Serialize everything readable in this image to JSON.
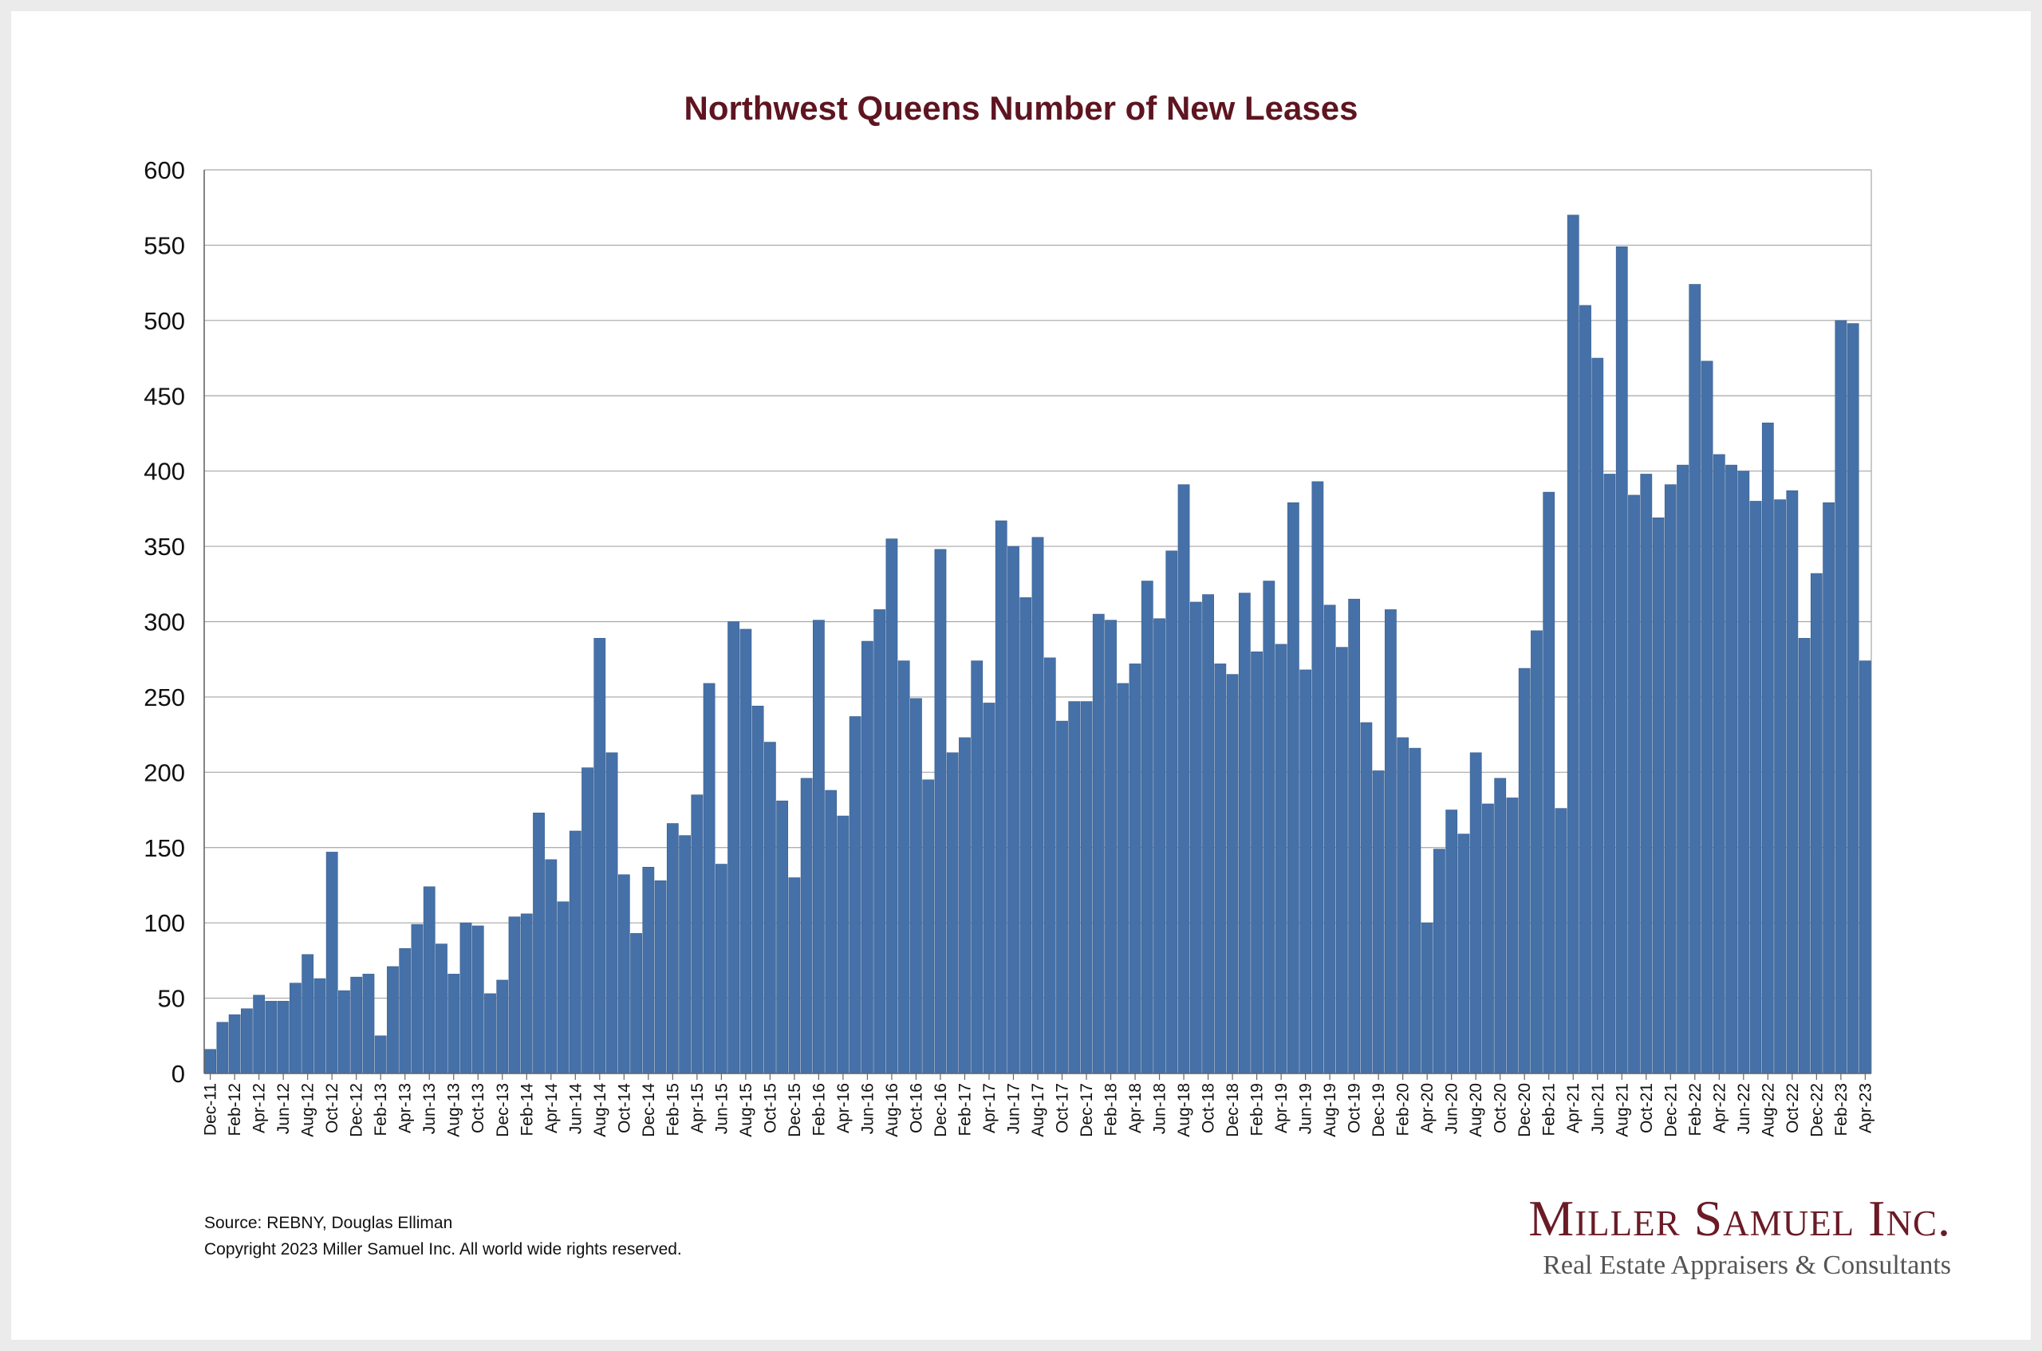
{
  "chart_data": {
    "type": "bar",
    "title": "Northwest Queens Number of New Leases",
    "xlabel": "",
    "ylabel": "",
    "ylim": [
      0,
      600
    ],
    "yticks": [
      0,
      50,
      100,
      150,
      200,
      250,
      300,
      350,
      400,
      450,
      500,
      550,
      600
    ],
    "grid": true,
    "color": "#4571a8",
    "categories": [
      "Dec-11",
      "Jan-12",
      "Feb-12",
      "Mar-12",
      "Apr-12",
      "May-12",
      "Jun-12",
      "Jul-12",
      "Aug-12",
      "Sep-12",
      "Oct-12",
      "Nov-12",
      "Dec-12",
      "Jan-13",
      "Feb-13",
      "Mar-13",
      "Apr-13",
      "May-13",
      "Jun-13",
      "Jul-13",
      "Aug-13",
      "Sep-13",
      "Oct-13",
      "Nov-13",
      "Dec-13",
      "Jan-14",
      "Feb-14",
      "Mar-14",
      "Apr-14",
      "May-14",
      "Jun-14",
      "Jul-14",
      "Aug-14",
      "Sep-14",
      "Oct-14",
      "Nov-14",
      "Dec-14",
      "Jan-15",
      "Feb-15",
      "Mar-15",
      "Apr-15",
      "May-15",
      "Jun-15",
      "Jul-15",
      "Aug-15",
      "Sep-15",
      "Oct-15",
      "Nov-15",
      "Dec-15",
      "Jan-16",
      "Feb-16",
      "Mar-16",
      "Apr-16",
      "May-16",
      "Jun-16",
      "Jul-16",
      "Aug-16",
      "Sep-16",
      "Oct-16",
      "Nov-16",
      "Dec-16",
      "Jan-17",
      "Feb-17",
      "Mar-17",
      "Apr-17",
      "May-17",
      "Jun-17",
      "Jul-17",
      "Aug-17",
      "Sep-17",
      "Oct-17",
      "Nov-17",
      "Dec-17",
      "Jan-18",
      "Feb-18",
      "Mar-18",
      "Apr-18",
      "May-18",
      "Jun-18",
      "Jul-18",
      "Aug-18",
      "Sep-18",
      "Oct-18",
      "Nov-18",
      "Dec-18",
      "Jan-19",
      "Feb-19",
      "Mar-19",
      "Apr-19",
      "May-19",
      "Jun-19",
      "Jul-19",
      "Aug-19",
      "Sep-19",
      "Oct-19",
      "Nov-19",
      "Dec-19",
      "Jan-20",
      "Feb-20",
      "Mar-20",
      "Apr-20",
      "May-20",
      "Jun-20",
      "Jul-20",
      "Aug-20",
      "Sep-20",
      "Oct-20",
      "Nov-20",
      "Dec-20",
      "Jan-21",
      "Feb-21",
      "Mar-21",
      "Apr-21",
      "May-21",
      "Jun-21",
      "Jul-21",
      "Aug-21",
      "Sep-21",
      "Oct-21",
      "Nov-21",
      "Dec-21",
      "Jan-22",
      "Feb-22",
      "Mar-22",
      "Apr-22",
      "May-22",
      "Jun-22",
      "Jul-22",
      "Aug-22",
      "Sep-22",
      "Oct-22",
      "Nov-22",
      "Dec-22",
      "Jan-23",
      "Feb-23",
      "Mar-23",
      "Apr-23"
    ],
    "values": [
      16,
      34,
      39,
      43,
      52,
      48,
      48,
      60,
      79,
      63,
      147,
      55,
      64,
      66,
      25,
      71,
      83,
      99,
      124,
      86,
      66,
      100,
      98,
      53,
      62,
      104,
      106,
      173,
      142,
      114,
      161,
      203,
      289,
      213,
      132,
      93,
      137,
      128,
      166,
      158,
      185,
      259,
      139,
      300,
      295,
      244,
      220,
      181,
      130,
      196,
      301,
      188,
      171,
      237,
      287,
      308,
      355,
      274,
      249,
      195,
      348,
      213,
      223,
      274,
      246,
      367,
      350,
      316,
      356,
      276,
      234,
      247,
      247,
      305,
      301,
      259,
      272,
      327,
      302,
      347,
      391,
      313,
      318,
      272,
      265,
      319,
      280,
      327,
      285,
      379,
      268,
      393,
      311,
      283,
      315,
      233,
      201,
      308,
      223,
      216,
      100,
      149,
      175,
      159,
      213,
      179,
      196,
      183,
      269,
      294,
      386,
      176,
      570,
      510,
      475,
      398,
      549,
      384,
      398,
      369,
      391,
      404,
      524,
      473,
      411,
      404,
      400,
      380,
      432,
      381,
      387,
      289,
      332,
      379,
      500,
      498,
      274
    ],
    "xtick_labels": [
      "Dec-11",
      "Feb-12",
      "Apr-12",
      "Jun-12",
      "Aug-12",
      "Oct-12",
      "Dec-12",
      "Feb-13",
      "Apr-13",
      "Jun-13",
      "Aug-13",
      "Oct-13",
      "Dec-13",
      "Feb-14",
      "Apr-14",
      "Jun-14",
      "Aug-14",
      "Oct-14",
      "Dec-14",
      "Feb-15",
      "Apr-15",
      "Jun-15",
      "Aug-15",
      "Oct-15",
      "Dec-15",
      "Feb-16",
      "Apr-16",
      "Jun-16",
      "Aug-16",
      "Oct-16",
      "Dec-16",
      "Feb-17",
      "Apr-17",
      "Jun-17",
      "Aug-17",
      "Oct-17",
      "Dec-17",
      "Feb-18",
      "Apr-18",
      "Jun-18",
      "Aug-18",
      "Oct-18",
      "Dec-18",
      "Feb-19",
      "Apr-19",
      "Jun-19",
      "Aug-19",
      "Oct-19",
      "Dec-19",
      "Feb-20",
      "Apr-20",
      "Jun-20",
      "Aug-20",
      "Oct-20",
      "Dec-20",
      "Feb-21",
      "Apr-21",
      "Jun-21",
      "Aug-21",
      "Oct-21",
      "Dec-21",
      "Feb-22",
      "Apr-22",
      "Jun-22",
      "Aug-22",
      "Oct-22",
      "Dec-22",
      "Feb-23",
      "Apr-23"
    ]
  },
  "footer": {
    "source": "Source: REBNY, Douglas Elliman",
    "copyright": "Copyright 2023 Miller Samuel Inc.  All world wide rights reserved."
  },
  "logo": {
    "name": "Miller Samuel Inc.",
    "tagline": "Real Estate Appraisers & Consultants"
  }
}
